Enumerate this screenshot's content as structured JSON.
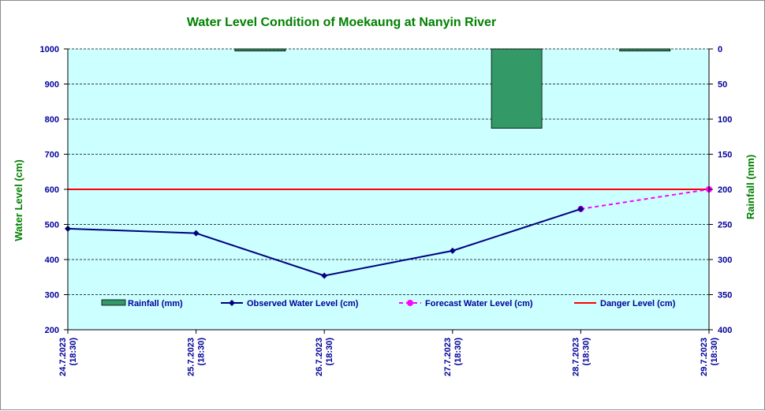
{
  "colors": {
    "plot_bg": "#ccffff",
    "title": "#008000",
    "axis_title": "#008000",
    "tick_text": "#000099",
    "rainfall_fill": "#339966",
    "observed_line": "#000080",
    "forecast_line": "#ff00ff",
    "danger_line": "#ff0000"
  },
  "chart_data": {
    "type": "bar+line",
    "title": "Water Level Condition  of  Moekaung  at  Nanyin  River",
    "ylabel_left": "Water Level (cm)",
    "ylabel_right": "Rainfall (mm)",
    "ylim_left": [
      200,
      1000
    ],
    "yticks_left": [
      "200",
      "300",
      "400",
      "500",
      "600",
      "700",
      "800",
      "900",
      "1000"
    ],
    "ylim_right": [
      0,
      400
    ],
    "yticks_right": [
      "0",
      "50",
      "100",
      "150",
      "200",
      "250",
      "300",
      "350",
      "400"
    ],
    "right_axis_inverted": true,
    "grid": "horizontal dashed",
    "categories": [
      {
        "date": "24.7.2023",
        "time": "(18:30)"
      },
      {
        "date": "25.7.2023",
        "time": "(18:30)"
      },
      {
        "date": "26.7.2023",
        "time": "(18:30)"
      },
      {
        "date": "27.7.2023",
        "time": "(18:30)"
      },
      {
        "date": "28.7.2023",
        "time": "(18:30)"
      },
      {
        "date": "29.7.2023",
        "time": "(18:30)"
      }
    ],
    "series": [
      {
        "name": "Rainfall (mm)",
        "kind": "bar",
        "axis": "right",
        "values": [
          null,
          3,
          null,
          113,
          3,
          null
        ]
      },
      {
        "name": "Observed Water Level (cm)",
        "kind": "line",
        "axis": "left",
        "values": [
          488,
          475,
          354,
          425,
          544,
          null
        ]
      },
      {
        "name": "Forecast Water Level (cm)",
        "kind": "line-dashed",
        "axis": "left",
        "values": [
          null,
          null,
          null,
          null,
          544,
          600
        ]
      },
      {
        "name": "Danger Level (cm)",
        "kind": "reference-line",
        "axis": "left",
        "value": 600
      }
    ],
    "legend": {
      "placement": "bottom-inside",
      "items": [
        "Rainfall (mm)",
        "Observed Water Level (cm)",
        "Forecast Water Level (cm)",
        "Danger Level (cm)"
      ]
    }
  }
}
